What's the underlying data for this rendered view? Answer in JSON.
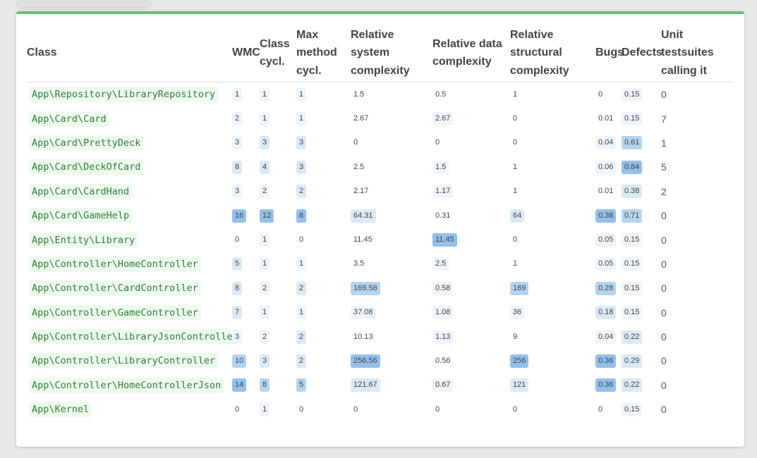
{
  "table": {
    "headers": {
      "class": "Class",
      "wmc": "WMC",
      "class_cycl": "Class cycl.",
      "max_method_cycl": "Max method cycl.",
      "rel_system": "Relative system complexity",
      "rel_data": "Relative data complexity",
      "rel_structural": "Relative structural complexity",
      "bugs": "Bugs",
      "defects": "Defects",
      "unit_tests": "Unit testsuites calling it"
    },
    "rows": [
      {
        "class": "App\\Repository\\LibraryRepository",
        "wmc": "1",
        "class_cycl": "1",
        "max_method_cycl": "1",
        "rel_system": "1.5",
        "rel_data": "0.5",
        "rel_structural": "1",
        "bugs": "0",
        "defects": "0.15",
        "unit_tests": "0"
      },
      {
        "class": "App\\Card\\Card",
        "wmc": "2",
        "class_cycl": "1",
        "max_method_cycl": "1",
        "rel_system": "2.67",
        "rel_data": "2.67",
        "rel_structural": "0",
        "bugs": "0.01",
        "defects": "0.15",
        "unit_tests": "7"
      },
      {
        "class": "App\\Card\\PrettyDeck",
        "wmc": "3",
        "class_cycl": "3",
        "max_method_cycl": "3",
        "rel_system": "0",
        "rel_data": "0",
        "rel_structural": "0",
        "bugs": "0.04",
        "defects": "0.61",
        "unit_tests": "1"
      },
      {
        "class": "App\\Card\\DeckOfCard",
        "wmc": "8",
        "class_cycl": "4",
        "max_method_cycl": "3",
        "rel_system": "2.5",
        "rel_data": "1.5",
        "rel_structural": "1",
        "bugs": "0.06",
        "defects": "0.84",
        "unit_tests": "5"
      },
      {
        "class": "App\\Card\\CardHand",
        "wmc": "3",
        "class_cycl": "2",
        "max_method_cycl": "2",
        "rel_system": "2.17",
        "rel_data": "1.17",
        "rel_structural": "1",
        "bugs": "0.01",
        "defects": "0.38",
        "unit_tests": "2"
      },
      {
        "class": "App\\Card\\GameHelp",
        "wmc": "16",
        "class_cycl": "12",
        "max_method_cycl": "8",
        "rel_system": "64.31",
        "rel_data": "0.31",
        "rel_structural": "64",
        "bugs": "0.38",
        "defects": "0.71",
        "unit_tests": "0"
      },
      {
        "class": "App\\Entity\\Library",
        "wmc": "0",
        "class_cycl": "1",
        "max_method_cycl": "0",
        "rel_system": "11.45",
        "rel_data": "11.45",
        "rel_structural": "0",
        "bugs": "0.05",
        "defects": "0.15",
        "unit_tests": "0"
      },
      {
        "class": "App\\Controller\\HomeController",
        "wmc": "5",
        "class_cycl": "1",
        "max_method_cycl": "1",
        "rel_system": "3.5",
        "rel_data": "2.5",
        "rel_structural": "1",
        "bugs": "0.05",
        "defects": "0.15",
        "unit_tests": "0"
      },
      {
        "class": "App\\Controller\\CardController",
        "wmc": "8",
        "class_cycl": "2",
        "max_method_cycl": "2",
        "rel_system": "169.58",
        "rel_data": "0.58",
        "rel_structural": "169",
        "bugs": "0.28",
        "defects": "0.15",
        "unit_tests": "0"
      },
      {
        "class": "App\\Controller\\GameController",
        "wmc": "7",
        "class_cycl": "1",
        "max_method_cycl": "1",
        "rel_system": "37.08",
        "rel_data": "1.08",
        "rel_structural": "36",
        "bugs": "0.18",
        "defects": "0.15",
        "unit_tests": "0"
      },
      {
        "class": "App\\Controller\\LibraryJsonController",
        "wmc": "3",
        "class_cycl": "2",
        "max_method_cycl": "2",
        "rel_system": "10.13",
        "rel_data": "1.13",
        "rel_structural": "9",
        "bugs": "0.04",
        "defects": "0.22",
        "unit_tests": "0"
      },
      {
        "class": "App\\Controller\\LibraryController",
        "wmc": "10",
        "class_cycl": "3",
        "max_method_cycl": "2",
        "rel_system": "256.56",
        "rel_data": "0.56",
        "rel_structural": "256",
        "bugs": "0.36",
        "defects": "0.29",
        "unit_tests": "0"
      },
      {
        "class": "App\\Controller\\HomeControllerJson",
        "wmc": "14",
        "class_cycl": "8",
        "max_method_cycl": "5",
        "rel_system": "121.67",
        "rel_data": "0.67",
        "rel_structural": "121",
        "bugs": "0.36",
        "defects": "0.22",
        "unit_tests": "0"
      },
      {
        "class": "App\\Kernel",
        "wmc": "0",
        "class_cycl": "1",
        "max_method_cycl": "0",
        "rel_system": "0",
        "rel_data": "0",
        "rel_structural": "0",
        "bugs": "0",
        "defects": "0.15",
        "unit_tests": "0"
      }
    ]
  },
  "colors": {
    "accent_top_border": "#6bbf7a",
    "class_text": "#2f7d3c",
    "class_background": "#eef9ee",
    "badge_levels": [
      "transparent",
      "#eef4fb",
      "#dbe9f7",
      "#b5d3ef",
      "#93c0ea"
    ]
  }
}
